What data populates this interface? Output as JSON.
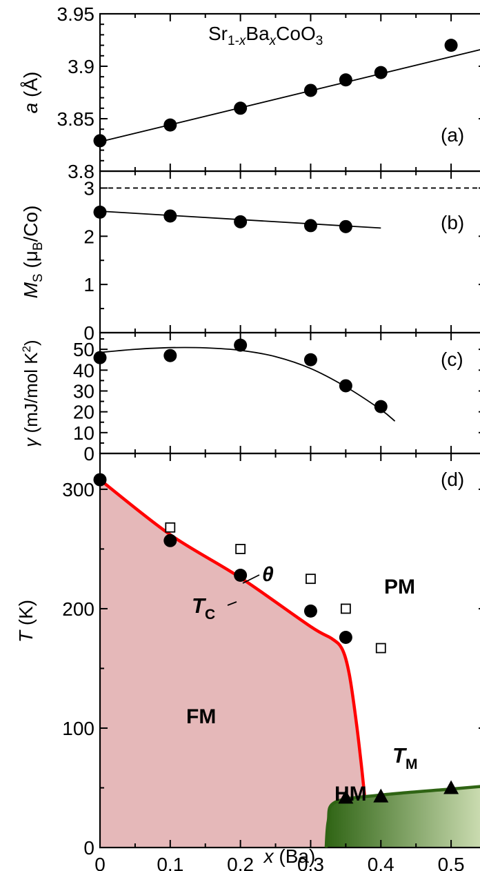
{
  "chart_data": [
    {
      "panel": "(a)",
      "type": "scatter",
      "title": "Sr1-xBaxCoO3",
      "ylabel": "a (Å)",
      "ylim": [
        3.8,
        3.95
      ],
      "yticks": [
        "3.8",
        "3.85",
        "3.9",
        "3.95"
      ],
      "points": {
        "x": [
          0,
          0.1,
          0.2,
          0.3,
          0.35,
          0.4,
          0.5
        ],
        "y": [
          3.829,
          3.844,
          3.86,
          3.877,
          3.887,
          3.894,
          3.92
        ]
      },
      "fit_line": {
        "x": [
          0,
          0.555
        ],
        "y": [
          3.828,
          3.918
        ]
      }
    },
    {
      "panel": "(b)",
      "type": "scatter",
      "ylabel": "MS (μB/Co)",
      "ylim": [
        0,
        3.35
      ],
      "yticks": [
        "0",
        "1",
        "2",
        "3"
      ],
      "points": {
        "x": [
          0,
          0.1,
          0.2,
          0.3,
          0.35
        ],
        "y": [
          2.5,
          2.42,
          2.3,
          2.22,
          2.2
        ]
      },
      "fit_line": {
        "x": [
          0,
          0.4
        ],
        "y": [
          2.52,
          2.17
        ]
      },
      "reference_line": {
        "y": 3,
        "style": "dashed"
      }
    },
    {
      "panel": "(c)",
      "type": "scatter",
      "ylabel": "γ (mJ/mol K2)",
      "ylim": [
        0,
        58
      ],
      "yticks": [
        "0",
        "10",
        "20",
        "30",
        "40",
        "50"
      ],
      "points": {
        "x": [
          0,
          0.1,
          0.2,
          0.3,
          0.35,
          0.4
        ],
        "y": [
          46,
          47,
          52,
          45,
          32.5,
          22.5
        ]
      },
      "fit_curve": {
        "x": [
          0,
          0.05,
          0.1,
          0.15,
          0.2,
          0.25,
          0.3,
          0.35,
          0.4,
          0.42
        ],
        "y": [
          48.5,
          50,
          50.8,
          50.7,
          49.5,
          46.5,
          40.8,
          32,
          21,
          15.5
        ]
      }
    },
    {
      "panel": "(d)",
      "type": "scatter",
      "xlabel": "x (Ba)",
      "ylabel": "T (K)",
      "xlim": [
        0,
        0.55
      ],
      "ylim": [
        0,
        330
      ],
      "xticks": [
        "0",
        "0.1",
        "0.2",
        "0.3",
        "0.4",
        "0.5"
      ],
      "yticks": [
        "0",
        "100",
        "200",
        "300"
      ],
      "series": [
        {
          "name": "TC",
          "marker": "filled-circle",
          "x": [
            0,
            0.1,
            0.2,
            0.3,
            0.35
          ],
          "y": [
            308,
            257,
            228,
            198,
            176
          ]
        },
        {
          "name": "θ",
          "marker": "open-square",
          "x": [
            0.1,
            0.2,
            0.3,
            0.35,
            0.4
          ],
          "y": [
            268,
            250,
            225,
            200,
            167
          ]
        },
        {
          "name": "TM",
          "marker": "filled-triangle",
          "x": [
            0.35,
            0.4,
            0.5
          ],
          "y": [
            42,
            43,
            50
          ]
        }
      ],
      "phase_boundary_TC": {
        "x": [
          0,
          0.1,
          0.2,
          0.3,
          0.33,
          0.345,
          0.355,
          0.365,
          0.372,
          0.377
        ],
        "y": [
          308,
          262,
          226,
          185,
          175,
          166,
          145,
          105,
          70,
          42
        ]
      },
      "phase_boundary_TM": {
        "x": [
          0.322,
          0.325,
          0.335,
          0.4,
          0.5,
          0.56
        ],
        "y": [
          0,
          22,
          38,
          44,
          49,
          52
        ]
      },
      "region_labels": [
        "FM",
        "PM",
        "HM"
      ],
      "curve_labels": [
        "TC",
        "θ",
        "TM"
      ],
      "colors": {
        "FM": "#e5b8b9",
        "TC_line": "#ff0000",
        "HM_dark": "#2f6414",
        "HM_light": "#d7e5bd"
      }
    }
  ]
}
